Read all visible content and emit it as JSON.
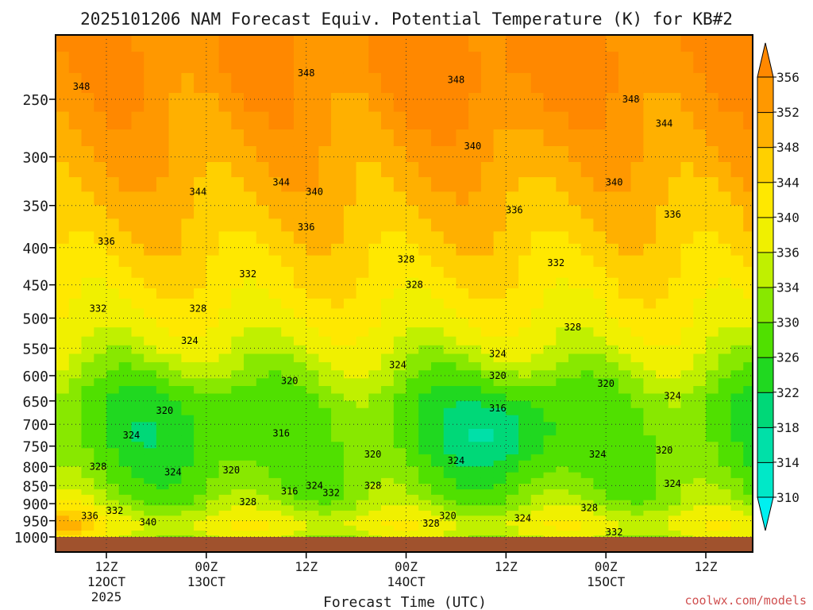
{
  "chart_data": {
    "type": "heatmap",
    "title": "2025101206 NAM Forecast Equiv. Potential Temperature (K) for KB#2",
    "xlabel": "Forecast Time (UTC)",
    "watermark": "coolwx.com/models",
    "y_axis": {
      "ticks": [
        250,
        300,
        350,
        400,
        450,
        500,
        550,
        600,
        650,
        700,
        750,
        800,
        850,
        900,
        950,
        1000
      ],
      "range": [
        200,
        1025
      ],
      "reversed": true,
      "scale": "log-pressure"
    },
    "x_axis": {
      "ticks": [
        {
          "top": "12Z",
          "mid": "12OCT",
          "bottom": "2025",
          "hour": 6
        },
        {
          "top": "00Z",
          "mid": "13OCT",
          "bottom": "",
          "hour": 18
        },
        {
          "top": "12Z",
          "mid": "",
          "bottom": "",
          "hour": 30
        },
        {
          "top": "00Z",
          "mid": "14OCT",
          "bottom": "",
          "hour": 42
        },
        {
          "top": "12Z",
          "mid": "",
          "bottom": "",
          "hour": 54
        },
        {
          "top": "00Z",
          "mid": "15OCT",
          "bottom": "",
          "hour": 66
        },
        {
          "top": "12Z",
          "mid": "",
          "bottom": "",
          "hour": 78
        }
      ],
      "hour_range": [
        0,
        84
      ]
    },
    "colorbar": {
      "labels": [
        310,
        314,
        318,
        322,
        326,
        330,
        334,
        336,
        340,
        344,
        348,
        352,
        356
      ],
      "bins": [
        {
          "value": 308,
          "color": "#00f0f0"
        },
        {
          "value": 312,
          "color": "#00e8c8"
        },
        {
          "value": 316,
          "color": "#00e0a8"
        },
        {
          "value": 320,
          "color": "#00d878"
        },
        {
          "value": 324,
          "color": "#20d820"
        },
        {
          "value": 328,
          "color": "#50e000"
        },
        {
          "value": 332,
          "color": "#88e800"
        },
        {
          "value": 335,
          "color": "#c0f000"
        },
        {
          "value": 338,
          "color": "#f0f000"
        },
        {
          "value": 342,
          "color": "#ffe800"
        },
        {
          "value": 346,
          "color": "#ffd000"
        },
        {
          "value": 350,
          "color": "#ffb000"
        },
        {
          "value": 354,
          "color": "#ff9800"
        },
        {
          "value": 358,
          "color": "#ff8800"
        }
      ]
    },
    "contour_labels": [
      {
        "hour": 30,
        "p": 230,
        "value": 348
      },
      {
        "hour": 3,
        "p": 240,
        "value": 348
      },
      {
        "hour": 48,
        "p": 235,
        "value": 348
      },
      {
        "hour": 69,
        "p": 250,
        "value": 348
      },
      {
        "hour": 73,
        "p": 270,
        "value": 344
      },
      {
        "hour": 50,
        "p": 290,
        "value": 340
      },
      {
        "hour": 27,
        "p": 325,
        "value": 344
      },
      {
        "hour": 17,
        "p": 335,
        "value": 344
      },
      {
        "hour": 31,
        "p": 335,
        "value": 340
      },
      {
        "hour": 67,
        "p": 325,
        "value": 340
      },
      {
        "hour": 55,
        "p": 355,
        "value": 336
      },
      {
        "hour": 74,
        "p": 360,
        "value": 336
      },
      {
        "hour": 30,
        "p": 375,
        "value": 336
      },
      {
        "hour": 6,
        "p": 392,
        "value": 336
      },
      {
        "hour": 42,
        "p": 415,
        "value": 328
      },
      {
        "hour": 60,
        "p": 420,
        "value": 332
      },
      {
        "hour": 23,
        "p": 435,
        "value": 332
      },
      {
        "hour": 43,
        "p": 450,
        "value": 328
      },
      {
        "hour": 5,
        "p": 485,
        "value": 332
      },
      {
        "hour": 17,
        "p": 485,
        "value": 328
      },
      {
        "hour": 62,
        "p": 515,
        "value": 328
      },
      {
        "hour": 16,
        "p": 537,
        "value": 324
      },
      {
        "hour": 53,
        "p": 560,
        "value": 324
      },
      {
        "hour": 41,
        "p": 580,
        "value": 324
      },
      {
        "hour": 53,
        "p": 600,
        "value": 320
      },
      {
        "hour": 28,
        "p": 610,
        "value": 320
      },
      {
        "hour": 66,
        "p": 615,
        "value": 320
      },
      {
        "hour": 74,
        "p": 640,
        "value": 324
      },
      {
        "hour": 53,
        "p": 665,
        "value": 316
      },
      {
        "hour": 13,
        "p": 670,
        "value": 320
      },
      {
        "hour": 27,
        "p": 720,
        "value": 316
      },
      {
        "hour": 9,
        "p": 725,
        "value": 324
      },
      {
        "hour": 38,
        "p": 770,
        "value": 320
      },
      {
        "hour": 73,
        "p": 760,
        "value": 320
      },
      {
        "hour": 65,
        "p": 770,
        "value": 324
      },
      {
        "hour": 48,
        "p": 785,
        "value": 324
      },
      {
        "hour": 5,
        "p": 800,
        "value": 328
      },
      {
        "hour": 21,
        "p": 810,
        "value": 320
      },
      {
        "hour": 14,
        "p": 815,
        "value": 324
      },
      {
        "hour": 31,
        "p": 850,
        "value": 324
      },
      {
        "hour": 38,
        "p": 850,
        "value": 328
      },
      {
        "hour": 74,
        "p": 845,
        "value": 324
      },
      {
        "hour": 28,
        "p": 865,
        "value": 316
      },
      {
        "hour": 33,
        "p": 870,
        "value": 332
      },
      {
        "hour": 23,
        "p": 895,
        "value": 328
      },
      {
        "hour": 64,
        "p": 912,
        "value": 328
      },
      {
        "hour": 7,
        "p": 920,
        "value": 332
      },
      {
        "hour": 47,
        "p": 935,
        "value": 320
      },
      {
        "hour": 56,
        "p": 942,
        "value": 324
      },
      {
        "hour": 4,
        "p": 935,
        "value": 336
      },
      {
        "hour": 11,
        "p": 955,
        "value": 340
      },
      {
        "hour": 45,
        "p": 958,
        "value": 328
      },
      {
        "hour": 67,
        "p": 985,
        "value": 332
      }
    ]
  }
}
